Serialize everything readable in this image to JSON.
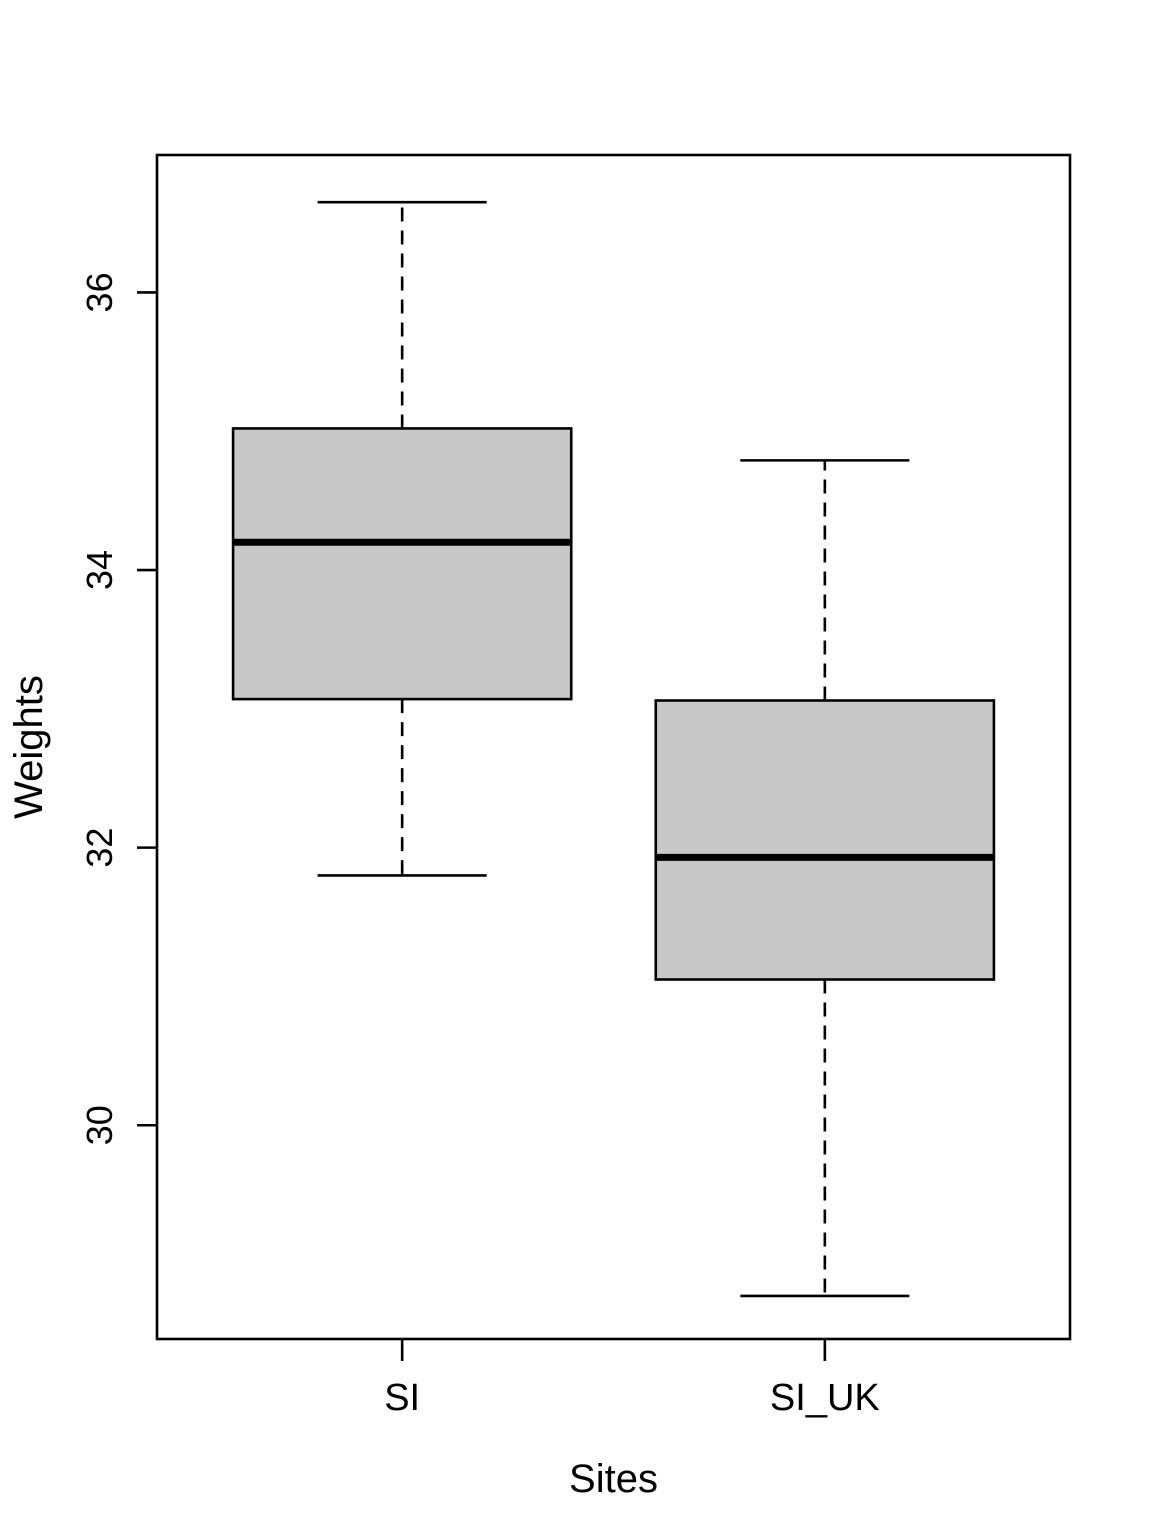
{
  "figure": {
    "background_color": "#ffffff",
    "plot_type_label": "boxplot"
  },
  "chart_data": {
    "type": "box",
    "title": "",
    "xlabel": "Sites",
    "ylabel": "Weights",
    "categories": [
      "SI",
      "SI_UK"
    ],
    "series": [
      {
        "name": "SI",
        "at": 1,
        "whisker_low": 31.8,
        "q1": 33.07,
        "median": 34.2,
        "q3": 35.02,
        "whisker_high": 36.65,
        "outliers": []
      },
      {
        "name": "SI_UK",
        "at": 2,
        "whisker_low": 28.77,
        "q1": 31.05,
        "median": 31.93,
        "q3": 33.06,
        "whisker_high": 34.79,
        "outliers": []
      }
    ],
    "y_ticks": [
      30,
      32,
      34,
      36
    ],
    "ylim": [
      28.46,
      36.99
    ],
    "xlim": [
      0.42,
      2.58
    ],
    "box_width": 0.8,
    "staple_width": 0.4,
    "box_fill": "#C8C8C8",
    "stroke_color": "#000000",
    "grid": false,
    "legend_position": "none"
  }
}
